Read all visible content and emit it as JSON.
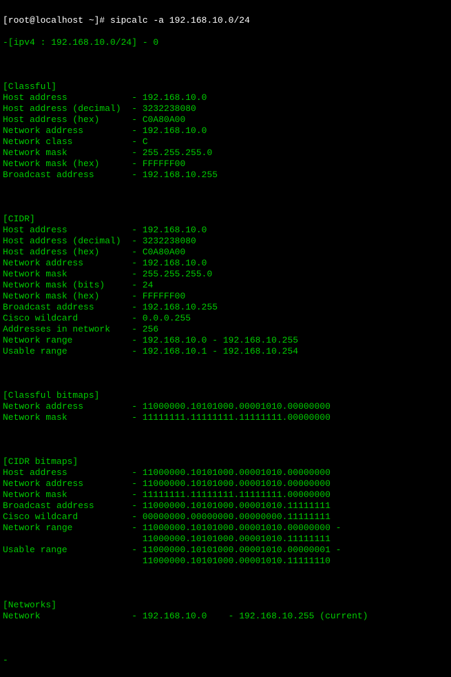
{
  "prompt": {
    "user": "[root@localhost ~]# ",
    "command": "sipcalc -a 192.168.10.0/24"
  },
  "header": "-[ipv4 : 192.168.10.0/24] - 0",
  "sections": {
    "classful": {
      "title": "[Classful]",
      "rows": [
        {
          "label": "Host address",
          "value": "192.168.10.0"
        },
        {
          "label": "Host address (decimal)",
          "value": "3232238080"
        },
        {
          "label": "Host address (hex)",
          "value": "C0A80A00"
        },
        {
          "label": "Network address",
          "value": "192.168.10.0"
        },
        {
          "label": "Network class",
          "value": "C"
        },
        {
          "label": "Network mask",
          "value": "255.255.255.0"
        },
        {
          "label": "Network mask (hex)",
          "value": "FFFFFF00"
        },
        {
          "label": "Broadcast address",
          "value": "192.168.10.255"
        }
      ]
    },
    "cidr": {
      "title": "[CIDR]",
      "rows": [
        {
          "label": "Host address",
          "value": "192.168.10.0"
        },
        {
          "label": "Host address (decimal)",
          "value": "3232238080"
        },
        {
          "label": "Host address (hex)",
          "value": "C0A80A00"
        },
        {
          "label": "Network address",
          "value": "192.168.10.0"
        },
        {
          "label": "Network mask",
          "value": "255.255.255.0"
        },
        {
          "label": "Network mask (bits)",
          "value": "24"
        },
        {
          "label": "Network mask (hex)",
          "value": "FFFFFF00"
        },
        {
          "label": "Broadcast address",
          "value": "192.168.10.255"
        },
        {
          "label": "Cisco wildcard",
          "value": "0.0.0.255"
        },
        {
          "label": "Addresses in network",
          "value": "256"
        },
        {
          "label": "Network range",
          "value": "192.168.10.0 - 192.168.10.255"
        },
        {
          "label": "Usable range",
          "value": "192.168.10.1 - 192.168.10.254"
        }
      ]
    },
    "classful_bitmaps": {
      "title": "[Classful bitmaps]",
      "rows": [
        {
          "label": "Network address",
          "value": "11000000.10101000.00001010.00000000"
        },
        {
          "label": "Network mask",
          "value": "11111111.11111111.11111111.00000000"
        }
      ]
    },
    "cidr_bitmaps": {
      "title": "[CIDR bitmaps]",
      "rows": [
        {
          "label": "Host address",
          "value": "11000000.10101000.00001010.00000000"
        },
        {
          "label": "Network address",
          "value": "11000000.10101000.00001010.00000000"
        },
        {
          "label": "Network mask",
          "value": "11111111.11111111.11111111.00000000"
        },
        {
          "label": "Broadcast address",
          "value": "11000000.10101000.00001010.11111111"
        },
        {
          "label": "Cisco wildcard",
          "value": "00000000.00000000.00000000.11111111"
        },
        {
          "label": "Network range",
          "value": "11000000.10101000.00001010.00000000 -"
        },
        {
          "label": "",
          "value": "11000000.10101000.00001010.11111111",
          "cont": true
        },
        {
          "label": "Usable range",
          "value": "11000000.10101000.00001010.00000001 -"
        },
        {
          "label": "",
          "value": "11000000.10101000.00001010.11111110",
          "cont": true
        }
      ]
    },
    "networks": {
      "title": "[Networks]",
      "rows": [
        {
          "label": "Network",
          "value": "192.168.10.0    - 192.168.10.255 (current)"
        }
      ]
    }
  },
  "trailer": "-"
}
